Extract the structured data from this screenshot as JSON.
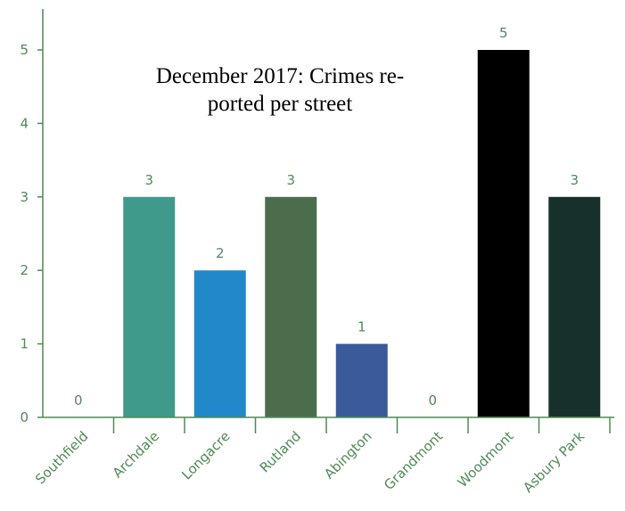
{
  "chart_data": {
    "type": "bar",
    "title": "December 2017: Crimes re-ported per street",
    "title_lines": [
      "December 2017: Crimes re-",
      "ported per street"
    ],
    "categories": [
      "Southfield",
      "Archdale",
      "Longacre",
      "Rutland",
      "Abington",
      "Grandmont",
      "Woodmont",
      "Asbury Park"
    ],
    "values": [
      0,
      3,
      2,
      3,
      1,
      0,
      5,
      3
    ],
    "colors": [
      "#3f9a8b",
      "#3f9a8b",
      "#2388c8",
      "#4b6d4b",
      "#3b5a9a",
      "#3f9a8b",
      "#000000",
      "#18302b"
    ],
    "data_labels": [
      "0",
      "3",
      "2",
      "3",
      "1",
      "0",
      "5",
      "3"
    ],
    "ylim": [
      0,
      5.5
    ],
    "yticks": [
      0,
      1,
      2,
      3,
      4,
      5
    ],
    "xlabel": "",
    "ylabel": "",
    "grid": false,
    "axis_color": "#4f8a55"
  }
}
